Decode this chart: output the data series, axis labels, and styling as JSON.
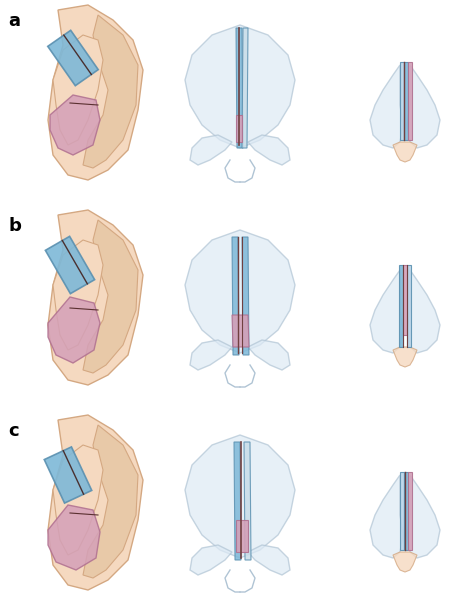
{
  "bg_color": "#ffffff",
  "skin_color": "#f5d9c0",
  "skin_edge_color": "#d4a882",
  "cartilage_color": "#d4e8f5",
  "cartilage_edge_color": "#a0b8cc",
  "blue_graft_color": "#7db8d8",
  "blue_graft_edge": "#5a90b0",
  "pink_graft_color": "#d4a0b8",
  "pink_graft_edge": "#b07090",
  "dark_strip_color": "#6b4040",
  "nose_outline_color": "#b0c4d4",
  "labels": [
    "a",
    "b",
    "c"
  ],
  "label_fontsize": 13,
  "label_fontweight": "bold",
  "fig_width": 4.74,
  "fig_height": 6.11,
  "dpi": 100
}
